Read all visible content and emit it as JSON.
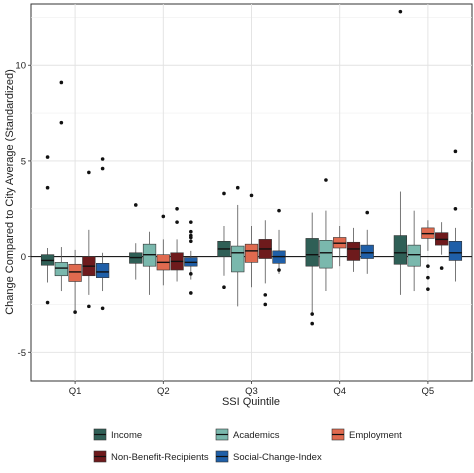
{
  "chart_data": {
    "type": "boxplot",
    "xlabel": "SSI Quintile",
    "ylabel": "Change Compared to City Average (Standardized)",
    "ylim": [
      -6.5,
      13.2
    ],
    "yticks": [
      -5,
      0,
      5,
      10
    ],
    "categories": [
      "Q1",
      "Q2",
      "Q3",
      "Q4",
      "Q5"
    ],
    "reference_line": 0,
    "grid": "major and minor",
    "legend_position": "bottom",
    "series": [
      {
        "name": "Income",
        "color": "#2f5f56",
        "boxes": [
          {
            "q1": -0.45,
            "median": -0.2,
            "q3": 0.1,
            "wlo": -1.35,
            "whi": 0.45,
            "outliers": [
              5.2,
              3.6,
              -2.4
            ]
          },
          {
            "q1": -0.35,
            "median": -0.05,
            "q3": 0.2,
            "wlo": -1.2,
            "whi": 0.7,
            "outliers": [
              2.7
            ]
          },
          {
            "q1": 0.0,
            "median": 0.4,
            "q3": 0.8,
            "wlo": -1.0,
            "whi": 1.6,
            "outliers": [
              3.3,
              -1.6
            ]
          },
          {
            "q1": -0.5,
            "median": 0.1,
            "q3": 0.95,
            "wlo": -3.0,
            "whi": 2.3,
            "outliers": [
              -3.0,
              -3.5
            ]
          },
          {
            "q1": -0.4,
            "median": 0.2,
            "q3": 1.1,
            "wlo": -2.0,
            "whi": 3.4,
            "outliers": [
              12.8
            ]
          }
        ]
      },
      {
        "name": "Academics",
        "color": "#7ab8ad",
        "boxes": [
          {
            "q1": -1.0,
            "median": -0.6,
            "q3": -0.3,
            "wlo": -1.8,
            "whi": 0.5,
            "outliers": [
              9.1,
              7.0
            ]
          },
          {
            "q1": -0.5,
            "median": 0.1,
            "q3": 0.65,
            "wlo": -2.0,
            "whi": 1.3,
            "outliers": []
          },
          {
            "q1": -0.8,
            "median": 0.2,
            "q3": 0.55,
            "wlo": -2.6,
            "whi": 2.7,
            "outliers": [
              3.6
            ]
          },
          {
            "q1": -0.6,
            "median": 0.2,
            "q3": 0.85,
            "wlo": -1.8,
            "whi": 2.4,
            "outliers": [
              4.0
            ]
          },
          {
            "q1": -0.5,
            "median": 0.1,
            "q3": 0.6,
            "wlo": -1.8,
            "whi": 2.4,
            "outliers": []
          }
        ]
      },
      {
        "name": "Employment",
        "color": "#e06a4f",
        "boxes": [
          {
            "q1": -1.3,
            "median": -0.8,
            "q3": -0.4,
            "wlo": -2.8,
            "whi": 0.35,
            "outliers": [
              -2.9
            ]
          },
          {
            "q1": -0.7,
            "median": -0.3,
            "q3": 0.1,
            "wlo": -1.5,
            "whi": 0.9,
            "outliers": [
              2.1
            ]
          },
          {
            "q1": -0.3,
            "median": 0.3,
            "q3": 0.65,
            "wlo": -1.6,
            "whi": 1.6,
            "outliers": [
              3.2
            ]
          },
          {
            "q1": 0.45,
            "median": 0.7,
            "q3": 1.0,
            "wlo": -0.5,
            "whi": 1.6,
            "outliers": []
          },
          {
            "q1": 0.95,
            "median": 1.2,
            "q3": 1.5,
            "wlo": 0.3,
            "whi": 1.9,
            "outliers": [
              -0.5,
              -1.1,
              -1.7
            ]
          }
        ]
      },
      {
        "name": "Non-Benefit-Recipients",
        "color": "#6e1a1c",
        "boxes": [
          {
            "q1": -1.0,
            "median": -0.5,
            "q3": 0.0,
            "wlo": -2.0,
            "whi": 1.4,
            "outliers": [
              -2.6,
              4.4
            ]
          },
          {
            "q1": -0.7,
            "median": -0.25,
            "q3": 0.2,
            "wlo": -1.3,
            "whi": 0.9,
            "outliers": [
              2.5,
              1.8
            ]
          },
          {
            "q1": -0.1,
            "median": 0.4,
            "q3": 0.9,
            "wlo": -1.4,
            "whi": 1.9,
            "outliers": [
              -2.0,
              -2.5
            ]
          },
          {
            "q1": -0.2,
            "median": 0.4,
            "q3": 0.75,
            "wlo": -0.8,
            "whi": 1.5,
            "outliers": []
          },
          {
            "q1": 0.6,
            "median": 0.9,
            "q3": 1.25,
            "wlo": 0.1,
            "whi": 1.8,
            "outliers": [
              -0.6
            ]
          }
        ]
      },
      {
        "name": "Social-Change-Index",
        "color": "#1f5fa8",
        "boxes": [
          {
            "q1": -1.1,
            "median": -0.8,
            "q3": -0.35,
            "wlo": -1.8,
            "whi": 0.2,
            "outliers": [
              5.1,
              4.6,
              -2.7
            ]
          },
          {
            "q1": -0.5,
            "median": -0.3,
            "q3": -0.05,
            "wlo": -1.2,
            "whi": 0.3,
            "outliers": [
              1.8,
              1.3,
              1.1,
              1.0,
              0.8,
              -0.9,
              -1.9
            ]
          },
          {
            "q1": -0.35,
            "median": 0.0,
            "q3": 0.3,
            "wlo": -0.9,
            "whi": 1.4,
            "outliers": [
              2.4,
              -0.7
            ]
          },
          {
            "q1": -0.1,
            "median": 0.2,
            "q3": 0.6,
            "wlo": -0.9,
            "whi": 1.4,
            "outliers": [
              2.3
            ]
          },
          {
            "q1": -0.2,
            "median": 0.2,
            "q3": 0.8,
            "wlo": -1.3,
            "whi": 1.5,
            "outliers": [
              5.5,
              2.5
            ]
          }
        ]
      }
    ]
  }
}
